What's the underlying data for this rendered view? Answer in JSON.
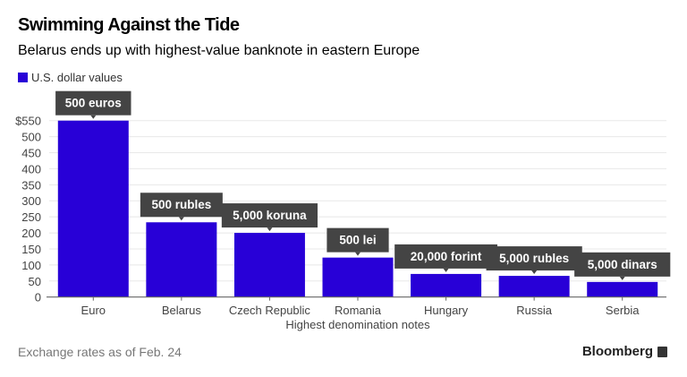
{
  "chart_data": {
    "type": "bar",
    "title": "Swimming Against the Tide",
    "subtitle": "Belarus ends up with highest-value banknote in eastern Europe",
    "legend": [
      "U.S. dollar values"
    ],
    "legend_placement": "top-left",
    "categories": [
      "Euro",
      "Belarus",
      "Czech Republic",
      "Romania",
      "Hungary",
      "Russia",
      "Serbia"
    ],
    "series": [
      {
        "name": "U.S. dollar values",
        "values": [
          550,
          233,
          200,
          123,
          72,
          66,
          47
        ]
      }
    ],
    "annotations": [
      "500 euros",
      "500 rubles",
      "5,000 koruna",
      "500 lei",
      "20,000 forint",
      "5,000 rubles",
      "5,000 dinars"
    ],
    "xlabel": "Highest denomination notes",
    "ylabel": "",
    "ylim": [
      0,
      550
    ],
    "yticks": [
      0,
      50,
      100,
      150,
      200,
      250,
      300,
      350,
      400,
      450,
      500,
      550
    ],
    "ytick_labels": [
      "0",
      "50",
      "100",
      "150",
      "200",
      "250",
      "300",
      "350",
      "400",
      "450",
      "500",
      "$550"
    ],
    "grid": true,
    "colors": {
      "bar": "#2800d7",
      "annotation_bg": "#444444",
      "grid": "#e8e8e8",
      "axis": "#666666"
    }
  },
  "footer": {
    "note": "Exchange rates as of Feb. 24",
    "brand": "Bloomberg"
  }
}
